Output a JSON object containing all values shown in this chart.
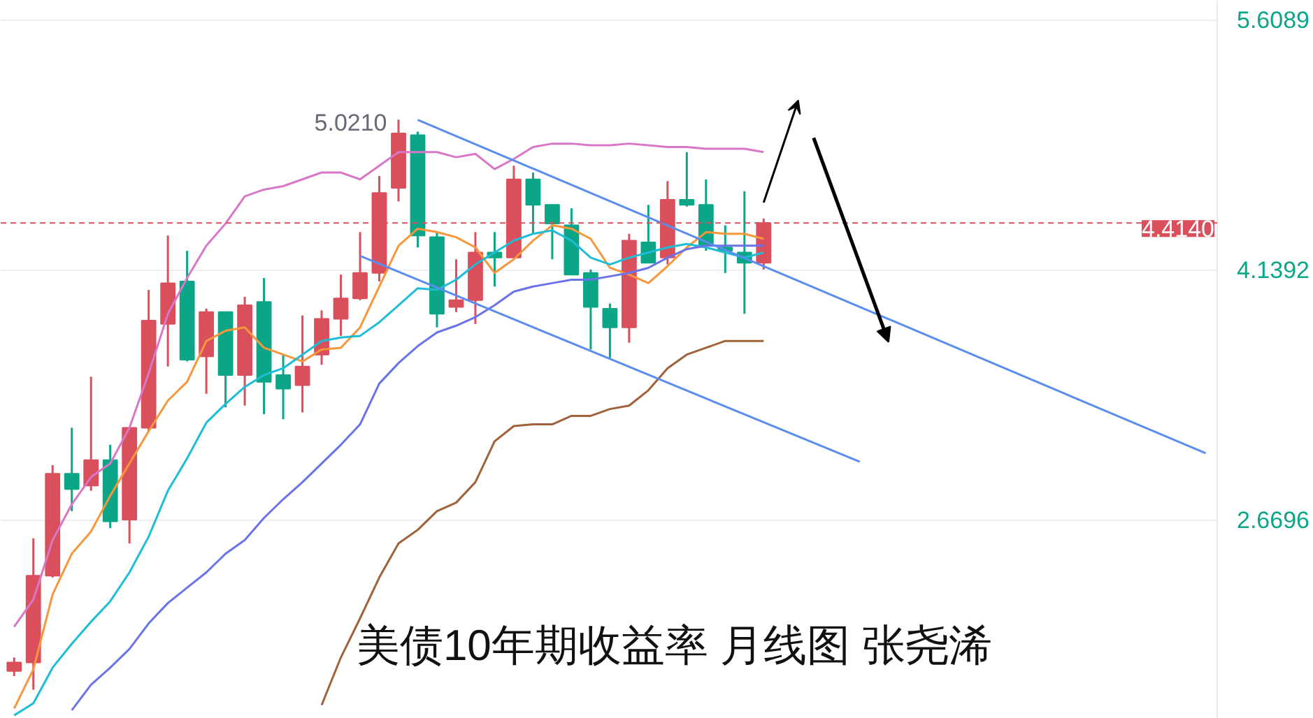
{
  "chart_data": {
    "type": "candlestick",
    "categories": [
      null,
      null,
      null,
      null,
      null,
      null,
      null,
      null,
      null,
      null,
      null,
      null,
      null,
      null,
      null,
      null,
      null,
      null,
      null,
      null,
      null,
      null,
      null,
      null,
      null,
      null,
      null,
      null,
      null,
      null,
      null,
      null,
      null,
      null,
      null,
      null,
      null,
      null,
      null,
      null,
      null,
      null,
      null,
      null,
      null,
      null,
      null,
      null,
      null,
      null,
      null,
      null,
      null,
      null,
      null,
      null,
      null,
      null,
      null,
      null,
      null,
      null,
      null
    ],
    "ohlc": [
      [
        1.78,
        1.86,
        1.75,
        1.83
      ],
      [
        1.83,
        2.56,
        1.67,
        2.34
      ],
      [
        2.34,
        2.99,
        2.33,
        2.94
      ],
      [
        2.94,
        3.21,
        2.72,
        2.85
      ],
      [
        2.87,
        3.51,
        2.84,
        3.02
      ],
      [
        3.02,
        3.11,
        2.62,
        2.66
      ],
      [
        2.67,
        3.21,
        2.53,
        3.21
      ],
      [
        3.21,
        4.02,
        3.19,
        3.84
      ],
      [
        3.82,
        4.34,
        3.57,
        4.06
      ],
      [
        4.07,
        4.25,
        3.6,
        3.61
      ],
      [
        3.63,
        3.91,
        3.41,
        3.89
      ],
      [
        3.89,
        3.89,
        3.33,
        3.52
      ],
      [
        3.52,
        3.98,
        3.34,
        3.93
      ],
      [
        3.95,
        4.09,
        3.29,
        3.48
      ],
      [
        3.52,
        3.64,
        3.26,
        3.44
      ],
      [
        3.46,
        3.87,
        3.3,
        3.57
      ],
      [
        3.64,
        3.9,
        3.58,
        3.85
      ],
      [
        3.85,
        4.11,
        3.75,
        3.97
      ],
      [
        3.97,
        4.36,
        3.96,
        4.12
      ],
      [
        4.12,
        4.69,
        4.07,
        4.59
      ],
      [
        4.62,
        5.021,
        4.54,
        4.94
      ],
      [
        4.93,
        4.95,
        4.27,
        4.34
      ],
      [
        4.33,
        4.36,
        3.8,
        3.88
      ],
      [
        3.92,
        4.2,
        3.89,
        3.96
      ],
      [
        3.96,
        4.36,
        3.82,
        4.24
      ],
      [
        4.24,
        4.36,
        4.04,
        4.21
      ],
      [
        4.21,
        4.75,
        4.21,
        4.67
      ],
      [
        4.67,
        4.71,
        4.35,
        4.52
      ],
      [
        4.52,
        4.52,
        4.2,
        4.41
      ],
      [
        4.4,
        4.5,
        4.11,
        4.11
      ],
      [
        4.12,
        4.14,
        3.67,
        3.92
      ],
      [
        3.91,
        3.94,
        3.62,
        3.8
      ],
      [
        3.8,
        4.35,
        3.71,
        4.31
      ],
      [
        4.3,
        4.52,
        4.18,
        4.18
      ],
      [
        4.21,
        4.66,
        4.17,
        4.55
      ],
      [
        4.55,
        4.83,
        4.51,
        4.52
      ],
      [
        4.52,
        4.67,
        4.25,
        4.28
      ],
      [
        4.27,
        4.4,
        4.12,
        4.25
      ],
      [
        4.24,
        4.6,
        3.88,
        4.18
      ],
      [
        4.18,
        4.44,
        4.14,
        4.414
      ],
      null,
      null,
      null,
      null,
      null,
      null,
      null,
      null,
      null,
      null,
      null,
      null,
      null,
      null,
      null,
      null,
      null,
      null,
      null,
      null,
      null,
      null,
      null
    ],
    "colors": [
      "#d94f5c",
      "#d94f5c",
      "#d94f5c",
      "#0aa687",
      "#d94f5c",
      "#0aa687",
      "#d94f5c",
      "#d94f5c",
      "#d94f5c",
      "#0aa687",
      "#d94f5c",
      "#0aa687",
      "#d94f5c",
      "#0aa687",
      "#0aa687",
      "#d94f5c",
      "#d94f5c",
      "#d94f5c",
      "#d94f5c",
      "#d94f5c",
      "#d94f5c",
      "#0aa687",
      "#0aa687",
      "#d94f5c",
      "#d94f5c",
      "#0aa687",
      "#d94f5c",
      "#0aa687",
      "#0aa687",
      "#0aa687",
      "#0aa687",
      "#0aa687",
      "#d94f5c",
      "#0aa687",
      "#d94f5c",
      "#0aa687",
      "#0aa687",
      "#0aa687",
      "#0aa687",
      "#d94f5c",
      null,
      null,
      null,
      null,
      null,
      null,
      null,
      null,
      null,
      null,
      null,
      null,
      null,
      null,
      null,
      null,
      null,
      null,
      null,
      null,
      null,
      null,
      null
    ],
    "series": [
      {
        "type": "line",
        "color": "#d877c8",
        "values": [
          2.04,
          2.2,
          2.55,
          2.76,
          2.92,
          3.0,
          3.21,
          3.53,
          3.88,
          4.09,
          4.28,
          4.41,
          4.57,
          4.61,
          4.63,
          4.67,
          4.71,
          4.71,
          4.67,
          4.75,
          4.83,
          4.83,
          4.83,
          4.8,
          4.82,
          4.73,
          4.79,
          4.86,
          4.88,
          4.88,
          4.87,
          4.87,
          4.88,
          4.87,
          4.86,
          4.86,
          4.85,
          4.85,
          4.85,
          4.83,
          null,
          null,
          null,
          null,
          null,
          null,
          null,
          null,
          null,
          null,
          null,
          null,
          null,
          null,
          null,
          null,
          null,
          null,
          null,
          null,
          null,
          null,
          null
        ]
      },
      {
        "type": "line",
        "color": "#f7963a",
        "values": [
          1.56,
          1.79,
          2.23,
          2.47,
          2.6,
          2.81,
          3.0,
          3.19,
          3.37,
          3.48,
          3.72,
          3.78,
          3.8,
          3.68,
          3.64,
          3.6,
          3.67,
          3.68,
          3.8,
          4.04,
          4.28,
          4.38,
          4.36,
          4.33,
          4.27,
          4.12,
          4.2,
          4.31,
          4.4,
          4.38,
          4.32,
          4.15,
          4.11,
          4.06,
          4.16,
          4.27,
          4.36,
          4.35,
          4.35,
          4.32,
          null,
          null,
          null,
          null,
          null,
          null,
          null,
          null,
          null,
          null,
          null,
          null,
          null,
          null,
          null,
          null,
          null,
          null,
          null,
          null,
          null,
          null,
          null
        ]
      },
      {
        "type": "line",
        "color": "#1dbdd6",
        "values": [
          1.52,
          1.59,
          1.8,
          1.94,
          2.07,
          2.19,
          2.36,
          2.57,
          2.84,
          3.03,
          3.24,
          3.35,
          3.45,
          3.52,
          3.56,
          3.64,
          3.72,
          3.74,
          3.75,
          3.83,
          3.93,
          4.03,
          4.02,
          4.08,
          4.17,
          4.24,
          4.31,
          4.35,
          4.37,
          4.31,
          4.21,
          4.17,
          4.21,
          4.24,
          4.27,
          4.29,
          4.27,
          4.24,
          4.21,
          4.24,
          null,
          null,
          null,
          null,
          null,
          null,
          null,
          null,
          null,
          null,
          null,
          null,
          null,
          null,
          null,
          null,
          null,
          null,
          null,
          null,
          null,
          null,
          null
        ]
      },
      {
        "type": "line",
        "color": "#6b73e8",
        "values": [
          null,
          null,
          null,
          1.55,
          1.7,
          1.8,
          1.91,
          2.06,
          2.18,
          2.27,
          2.36,
          2.47,
          2.55,
          2.68,
          2.79,
          2.89,
          3.0,
          3.11,
          3.23,
          3.47,
          3.59,
          3.69,
          3.77,
          3.81,
          3.86,
          3.93,
          4.01,
          4.04,
          4.06,
          4.08,
          4.08,
          4.1,
          4.12,
          4.15,
          4.21,
          4.26,
          4.28,
          4.28,
          4.28,
          4.28,
          null,
          null,
          null,
          null,
          null,
          null,
          null,
          null,
          null,
          null,
          null,
          null,
          null,
          null,
          null,
          null,
          null,
          null,
          null,
          null,
          null,
          null,
          null
        ]
      },
      {
        "type": "line",
        "color": "#a0623a",
        "values": [
          null,
          null,
          null,
          null,
          null,
          null,
          null,
          null,
          null,
          null,
          null,
          null,
          null,
          null,
          null,
          null,
          1.58,
          1.86,
          2.09,
          2.33,
          2.53,
          2.61,
          2.72,
          2.77,
          2.89,
          3.13,
          3.22,
          3.23,
          3.23,
          3.28,
          3.28,
          3.32,
          3.34,
          3.43,
          3.56,
          3.64,
          3.68,
          3.72,
          3.72,
          3.72,
          null,
          null,
          null,
          null,
          null,
          null,
          null,
          null,
          null,
          null,
          null,
          null,
          null,
          null,
          null,
          null,
          null,
          null,
          null,
          null,
          null,
          null,
          null
        ]
      },
      {
        "type": "line",
        "color": "#5b8def",
        "values": [
          null,
          null,
          null,
          null,
          null,
          null,
          null,
          null,
          null,
          null,
          null,
          null,
          null,
          null,
          null,
          null,
          null,
          null,
          null,
          null,
          null,
          5.02,
          null,
          null,
          null,
          null,
          null,
          null,
          null,
          null,
          null,
          null,
          null,
          null,
          null,
          null,
          null,
          null,
          null,
          null,
          null,
          null,
          null,
          null,
          null,
          null,
          null,
          null,
          null,
          null,
          null,
          null,
          null,
          null,
          null,
          null,
          null,
          null,
          null,
          null,
          null,
          null,
          3.06
        ]
      },
      {
        "type": "line",
        "color": "#5b8def",
        "values": [
          null,
          null,
          null,
          null,
          null,
          null,
          null,
          null,
          null,
          null,
          null,
          null,
          null,
          null,
          null,
          null,
          null,
          null,
          4.22,
          null,
          null,
          null,
          null,
          null,
          null,
          null,
          null,
          null,
          null,
          null,
          null,
          null,
          null,
          null,
          null,
          null,
          null,
          null,
          null,
          null,
          null,
          null,
          null,
          null,
          3.01,
          null,
          null,
          null,
          null,
          null,
          null,
          null,
          null,
          null,
          null,
          null,
          null,
          null,
          null,
          null,
          null,
          null,
          null
        ]
      }
    ],
    "ylim": [
      1.5,
      5.72
    ],
    "yticks": [
      2.6696,
      4.1392,
      5.6089
    ],
    "ref_lines": [
      {
        "axis": "y",
        "value": 4.414,
        "label": "4.4140",
        "color": "#d94f5c",
        "line_style": "dashed"
      }
    ],
    "annotations": [
      "5.0210",
      "美债10年期收益率 月线图 张尧浠"
    ],
    "tick_labels": "y",
    "grid": "y"
  }
}
